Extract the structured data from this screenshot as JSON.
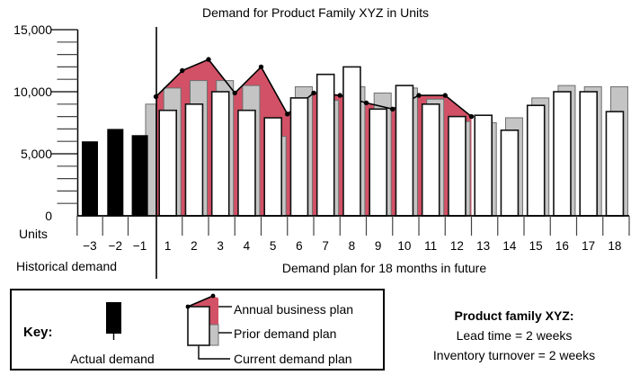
{
  "title": "Demand for Product Family XYZ in Units",
  "chart_data": {
    "type": "combo: bars + area + line",
    "title": "Demand for Product Family XYZ in Units",
    "y_axis": {
      "label": "Units",
      "min": 0,
      "max": 15000,
      "minor_step": 1000,
      "major_step": 5000,
      "major_ticks": [
        {
          "value": 15000,
          "label": "15,000"
        },
        {
          "value": 10000,
          "label": "10,000"
        },
        {
          "value": 5000,
          "label": "5,000"
        },
        {
          "value": 0,
          "label": "0"
        }
      ]
    },
    "x_axis": {
      "historical_section_label": "Historical demand",
      "future_section_label": "Demand plan for 18 months in future",
      "historical_months": [
        "−3",
        "−2",
        "−1"
      ],
      "future_months": [
        "1",
        "2",
        "3",
        "4",
        "5",
        "6",
        "7",
        "8",
        "9",
        "10",
        "11",
        "12",
        "13",
        "14",
        "15",
        "16",
        "17",
        "18"
      ]
    },
    "series": [
      {
        "name": "Actual demand",
        "type": "bar",
        "color": "#000000",
        "months": [
          "−3",
          "−2",
          "−1"
        ],
        "values": [
          6000,
          7000,
          6500
        ]
      },
      {
        "name": "Current demand plan",
        "type": "bar",
        "color": "#ffffff",
        "months": [
          "1",
          "2",
          "3",
          "4",
          "5",
          "6",
          "7",
          "8",
          "9",
          "10",
          "11",
          "12",
          "13",
          "14",
          "15",
          "16",
          "17",
          "18"
        ],
        "values": [
          8500,
          9000,
          10000,
          8500,
          7900,
          9500,
          11400,
          12000,
          8600,
          10500,
          9000,
          8000,
          8100,
          6900,
          8900,
          10000,
          10000,
          8400
        ]
      },
      {
        "name": "Prior demand plan",
        "type": "bar",
        "color": "#c4c4c4",
        "months": [
          "0",
          "1",
          "2",
          "3",
          "4",
          "5",
          "6",
          "7",
          "8",
          "9",
          "10",
          "11",
          "12",
          "13",
          "14",
          "15",
          "16",
          "17",
          "18"
        ],
        "values": [
          9000,
          10300,
          10900,
          10900,
          10500,
          6400,
          10400,
          9300,
          10400,
          9900,
          10300,
          9400,
          7600,
          7500,
          7900,
          9500,
          10500,
          10400,
          10400
        ]
      },
      {
        "name": "Annual business plan",
        "type": "area+line",
        "color": "#d25166",
        "x_positions": "month boundaries 0 through 12",
        "values": [
          9600,
          11700,
          12600,
          9900,
          12000,
          8200,
          9900,
          9700,
          9100,
          8600,
          9700,
          9700,
          8000
        ]
      }
    ]
  },
  "key": {
    "heading": "Key:",
    "actual_demand_label": "Actual demand",
    "annual_business_plan_label": "Annual business plan",
    "prior_demand_plan_label": "Prior demand plan",
    "current_demand_plan_label": "Current demand plan"
  },
  "info": {
    "heading": "Product family XYZ:",
    "lead_time": "Lead time = 2 weeks",
    "inventory_turnover": "Inventory turnover = 2 weeks"
  },
  "colors": {
    "red": "#d25166",
    "gray": "#c4c4c4",
    "gray_border": "#6f6f6f",
    "black": "#000000"
  }
}
